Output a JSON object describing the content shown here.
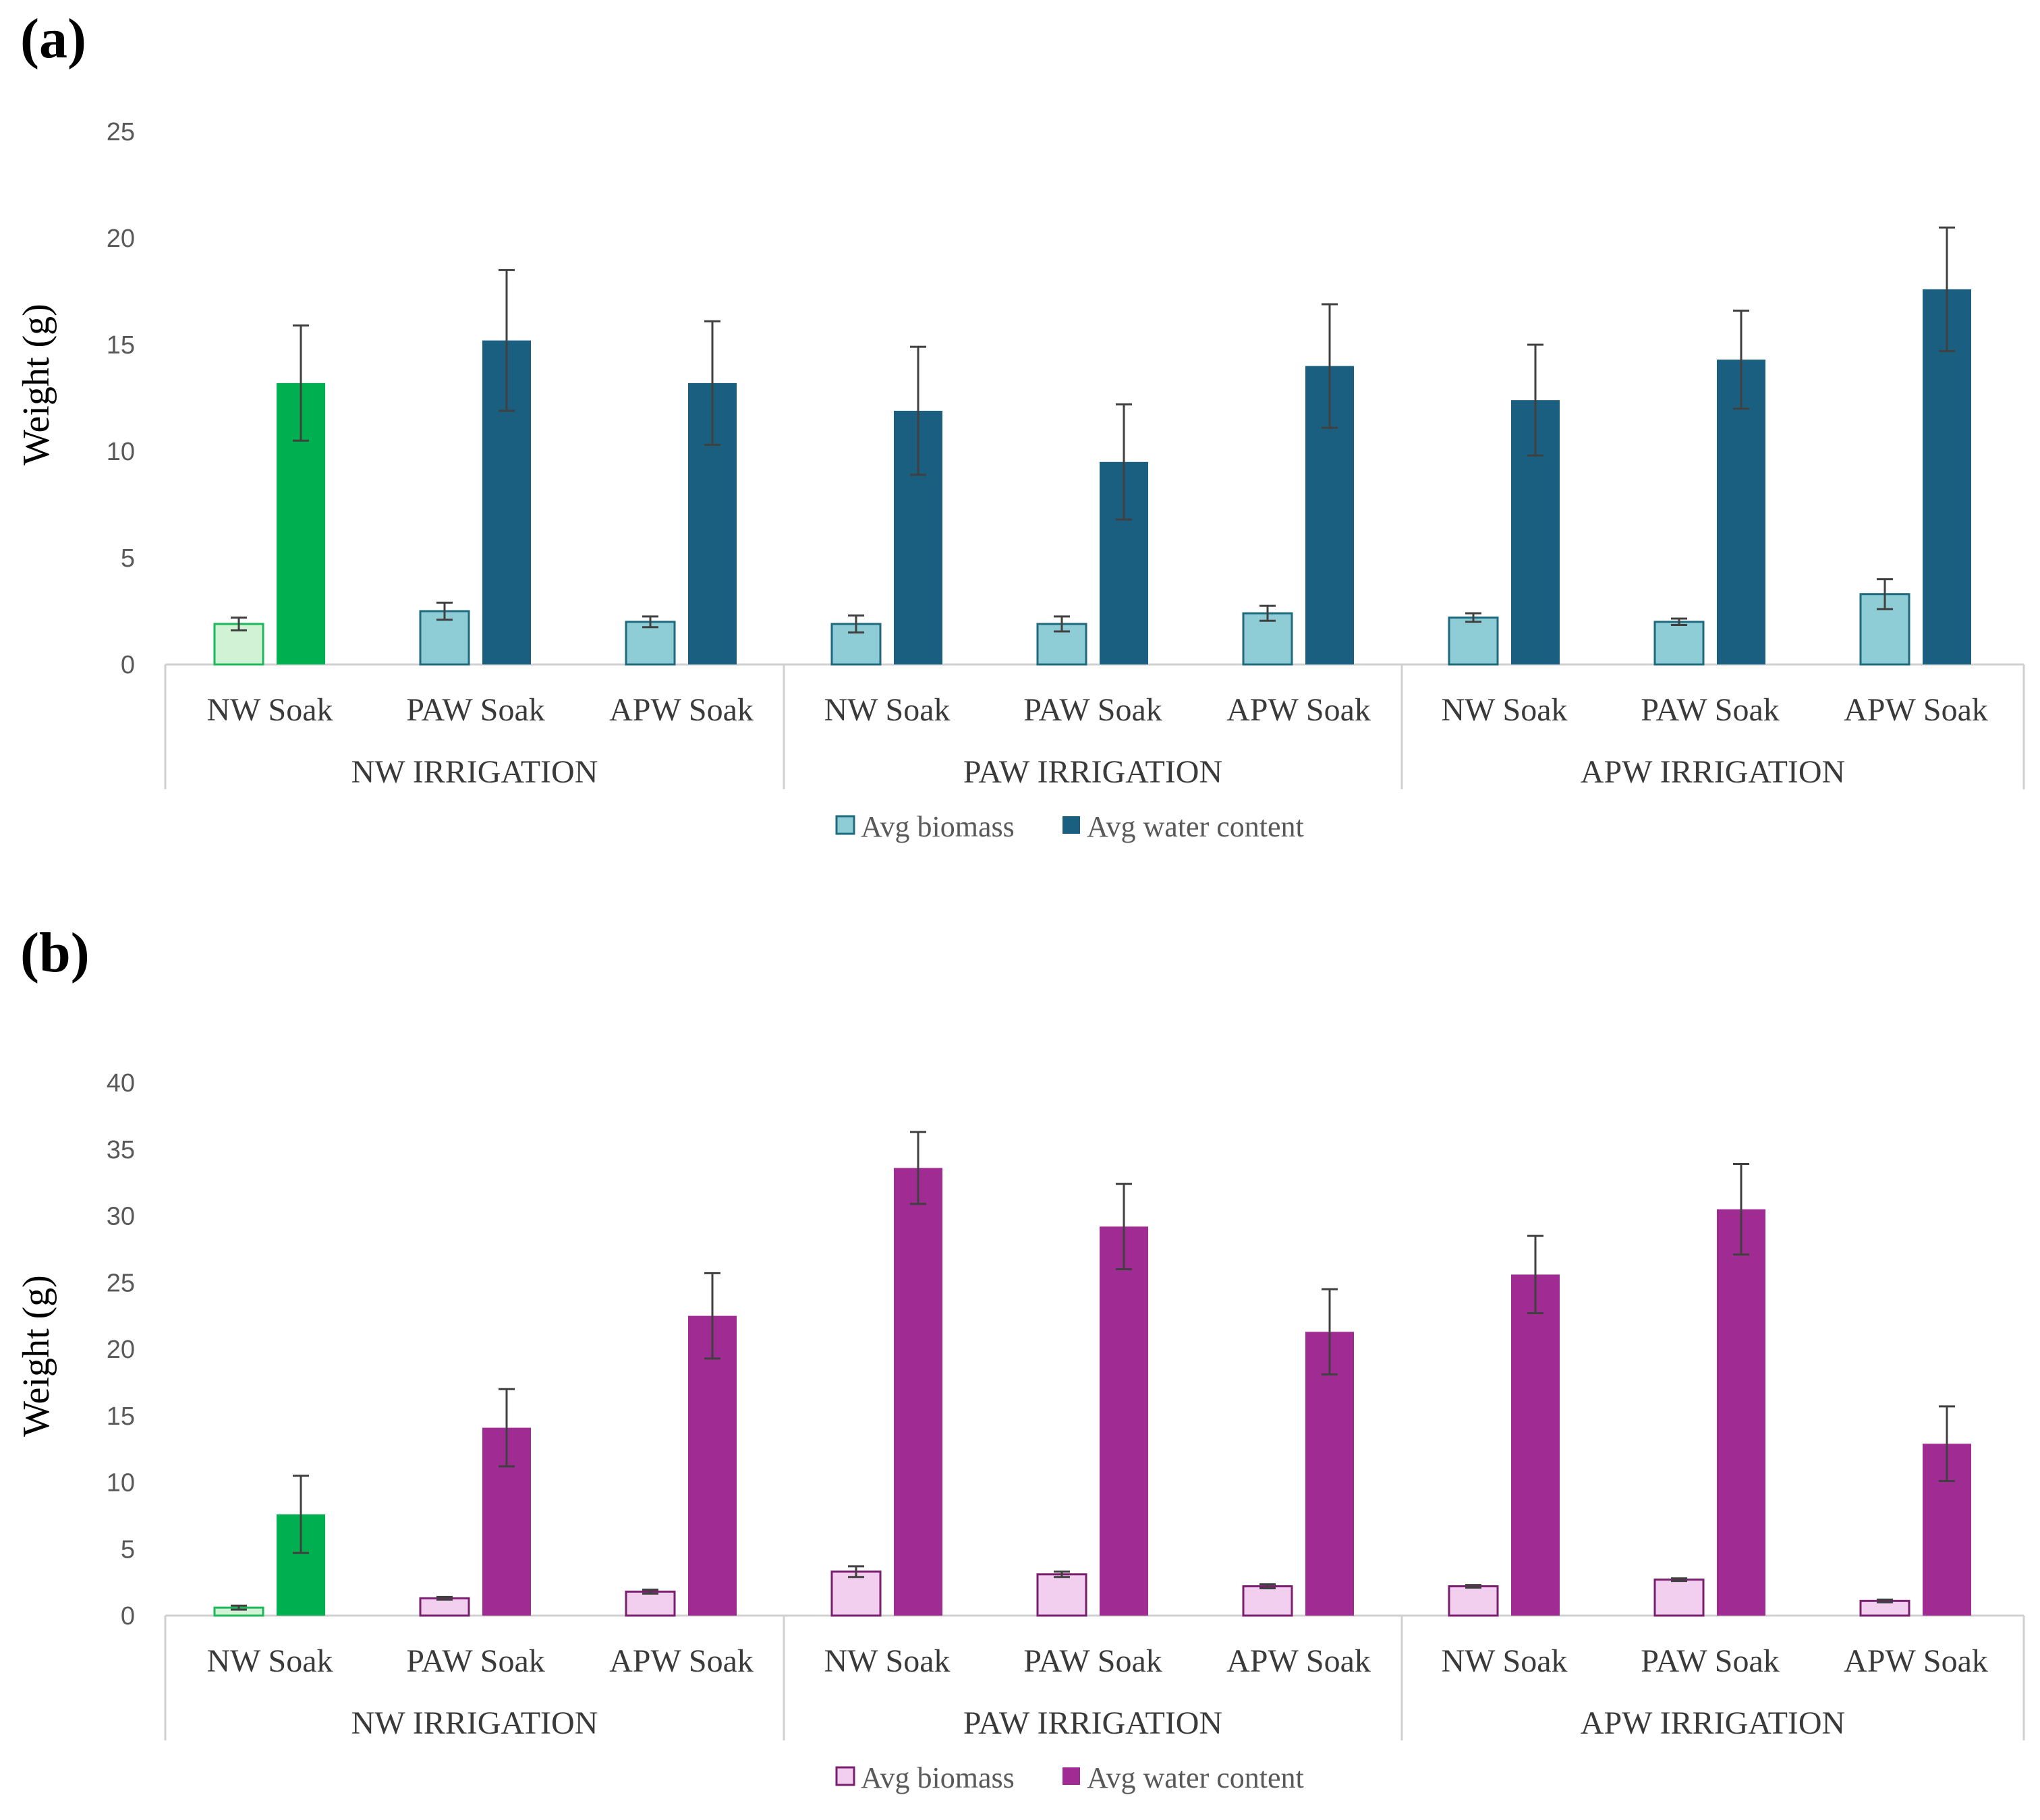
{
  "chart_data": [
    {
      "panel_label": "(a)",
      "type": "bar",
      "ylabel": "Weight (g)",
      "ylim": [
        0,
        25
      ],
      "yticks": [
        0,
        5,
        10,
        15,
        20,
        25
      ],
      "categories": [
        "NW Soak",
        "PAW Soak",
        "APW Soak",
        "NW Soak",
        "PAW Soak",
        "APW Soak",
        "NW Soak",
        "PAW Soak",
        "APW Soak"
      ],
      "groups": [
        "NW IRRIGATION",
        "PAW IRRIGATION",
        "APW IRRIGATION"
      ],
      "legend_position": "bottom",
      "series": [
        {
          "name": "Avg biomass",
          "fill": "#8ECCD6",
          "stroke": "#1F6A7E",
          "highlight_fill": "#D2F2D6",
          "highlight_stroke": "#1DB85A",
          "values": [
            1.9,
            2.5,
            2.0,
            1.9,
            1.9,
            2.4,
            2.2,
            2.0,
            3.3
          ],
          "errors": [
            0.3,
            0.4,
            0.25,
            0.4,
            0.35,
            0.35,
            0.2,
            0.15,
            0.7
          ]
        },
        {
          "name": "Avg water content",
          "fill": "#1A5E80",
          "stroke": "#1A5E80",
          "highlight_fill": "#00B050",
          "highlight_stroke": "#00B050",
          "values": [
            13.2,
            15.2,
            13.2,
            11.9,
            9.5,
            14.0,
            12.4,
            14.3,
            17.6
          ],
          "errors": [
            2.7,
            3.3,
            2.9,
            3.0,
            2.7,
            2.9,
            2.6,
            2.3,
            2.9
          ]
        }
      ],
      "highlight_category_index": 0
    },
    {
      "panel_label": "(b)",
      "type": "bar",
      "ylabel": "Weight (g)",
      "ylim": [
        0,
        40
      ],
      "yticks": [
        0,
        5,
        10,
        15,
        20,
        25,
        30,
        35,
        40
      ],
      "categories": [
        "NW Soak",
        "PAW Soak",
        "APW Soak",
        "NW Soak",
        "PAW Soak",
        "APW Soak",
        "NW Soak",
        "PAW Soak",
        "APW Soak"
      ],
      "groups": [
        "NW IRRIGATION",
        "PAW IRRIGATION",
        "APW IRRIGATION"
      ],
      "legend_position": "bottom",
      "series": [
        {
          "name": "Avg biomass",
          "fill": "#F2CFEE",
          "stroke": "#7A1F70",
          "highlight_fill": "#D2F2D6",
          "highlight_stroke": "#1DB85A",
          "values": [
            0.6,
            1.3,
            1.8,
            3.3,
            3.1,
            2.2,
            2.2,
            2.7,
            1.1
          ],
          "errors": [
            0.15,
            0.1,
            0.15,
            0.4,
            0.2,
            0.15,
            0.1,
            0.1,
            0.1
          ]
        },
        {
          "name": "Avg water content",
          "fill": "#A02B93",
          "stroke": "#A02B93",
          "highlight_fill": "#00B050",
          "highlight_stroke": "#00B050",
          "values": [
            7.6,
            14.1,
            22.5,
            33.6,
            29.2,
            21.3,
            25.6,
            30.5,
            12.9
          ],
          "errors": [
            2.9,
            2.9,
            3.2,
            2.7,
            3.2,
            3.2,
            2.9,
            3.4,
            2.8
          ]
        }
      ],
      "highlight_category_index": 0
    }
  ]
}
